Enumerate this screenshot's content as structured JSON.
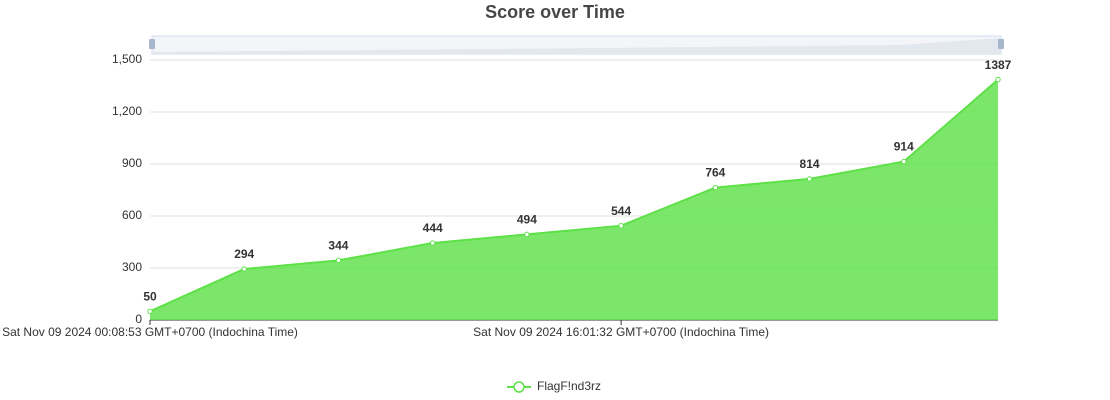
{
  "chart_data": {
    "type": "area",
    "title": "Score over Time",
    "categories": [
      "Sat Nov 09 2024 00:08:53 GMT+0700 (Indochina Time)",
      null,
      null,
      null,
      null,
      "Sat Nov 09 2024 16:01:32 GMT+0700 (Indochina Time)",
      null,
      null,
      null,
      null
    ],
    "series": [
      {
        "name": "FlagF!nd3rz",
        "color": "#5ee048",
        "values": [
          50,
          294,
          344,
          444,
          494,
          544,
          764,
          814,
          914,
          1387
        ]
      }
    ],
    "ylim": [
      0,
      1500
    ],
    "yticks": [
      0,
      300,
      600,
      900,
      {
        "value": 1200,
        "label": "1,200"
      },
      {
        "value": 1500,
        "label": "1,500"
      }
    ],
    "grid": true
  }
}
